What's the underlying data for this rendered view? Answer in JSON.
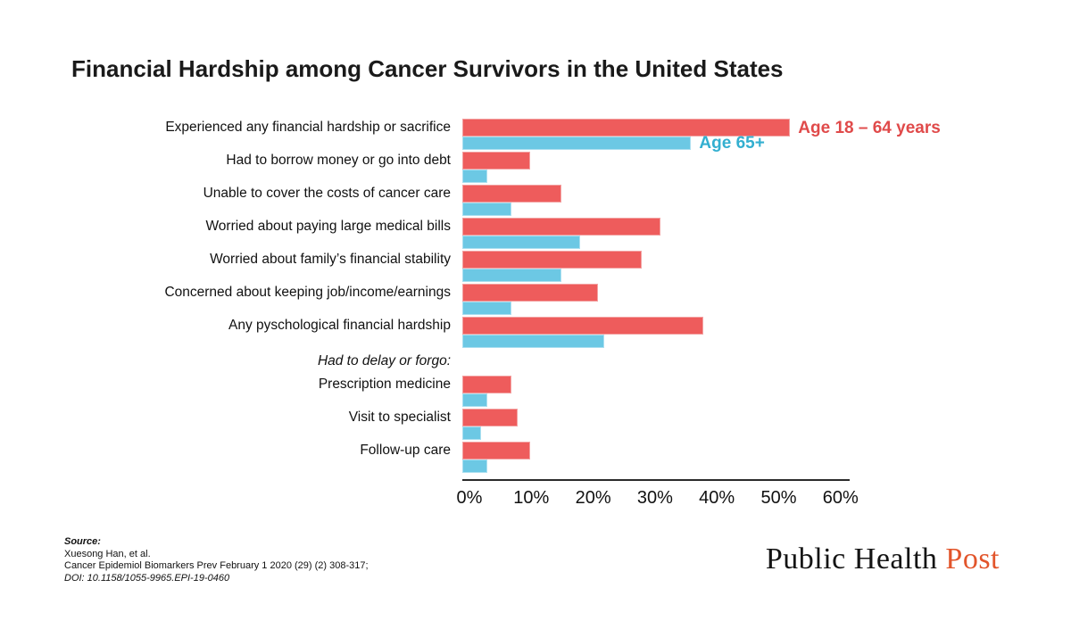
{
  "title": "Financial Hardship among Cancer Survivors in the United States",
  "chart_data": {
    "type": "bar",
    "orientation": "horizontal",
    "title": "Financial Hardship among Cancer Survivors in the United States",
    "xlabel": "",
    "ylabel": "",
    "x_axis": {
      "ticks": [
        "0%",
        "10%",
        "20%",
        "30%",
        "40%",
        "50%",
        "60%"
      ],
      "min": 0,
      "max": 60,
      "unit": "%"
    },
    "grid": false,
    "legend_position": "beside-first-bars",
    "series_names": [
      "Age 18 – 64 years",
      "Age 65+"
    ],
    "colors": {
      "age_18_64": "#EE5C5C",
      "age_65_plus": "#6CC8E4"
    },
    "rows": [
      {
        "label": "Experienced any financial hardship or sacrifice",
        "age_18_64": 53,
        "age_65_plus": 37
      },
      {
        "label": "Had to borrow money or go into debt",
        "age_18_64": 11,
        "age_65_plus": 4
      },
      {
        "label": "Unable to cover the costs of cancer care",
        "age_18_64": 16,
        "age_65_plus": 8
      },
      {
        "label": "Worried about paying large medical bills",
        "age_18_64": 32,
        "age_65_plus": 19
      },
      {
        "label": "Worried about family’s financial stability",
        "age_18_64": 29,
        "age_65_plus": 16
      },
      {
        "label": "Concerned about keeping job/income/earnings",
        "age_18_64": 22,
        "age_65_plus": 8
      },
      {
        "label": "Any pyschological financial hardship",
        "age_18_64": 39,
        "age_65_plus": 23
      },
      {
        "label": "Had to delay or forgo:",
        "subheader": true
      },
      {
        "label": "Prescription medicine",
        "age_18_64": 8,
        "age_65_plus": 4
      },
      {
        "label": "Visit to specialist",
        "age_18_64": 9,
        "age_65_plus": 3
      },
      {
        "label": "Follow-up care",
        "age_18_64": 11,
        "age_65_plus": 4
      }
    ]
  },
  "legend": {
    "red_label": "Age 18 – 64 years",
    "blue_label": "Age 65+",
    "red_text_color": "#E04A4A",
    "blue_text_color": "#33AFD0"
  },
  "source": {
    "label": "Source:",
    "line1": "Xuesong Han, et al.",
    "line2": "Cancer Epidemiol Biomarkers Prev February 1 2020 (29) (2) 308-317;",
    "line3": "DOI: 10.1158/1055-9965.EPI-19-0460"
  },
  "logo": {
    "part1": "Public Health",
    "part2": "Post",
    "accent_color": "#E2552B"
  }
}
